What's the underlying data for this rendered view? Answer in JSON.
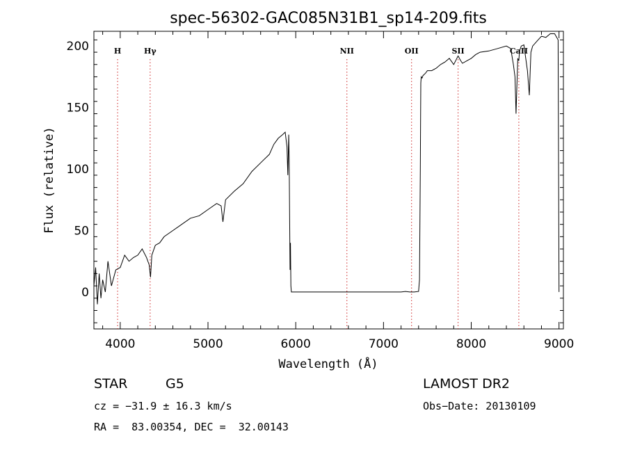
{
  "chart_data": {
    "type": "line",
    "title": "spec-56302-GAC085N31B1_sp14-209.fits",
    "xlabel": "Wavelength (Å)",
    "ylabel": "Flux (relative)",
    "xlim": [
      3700,
      9050
    ],
    "ylim": [
      -30,
      212
    ],
    "xticks": [
      4000,
      5000,
      6000,
      7000,
      8000,
      9000
    ],
    "yticks": [
      0,
      50,
      100,
      150,
      200
    ],
    "grid": false,
    "series": [
      {
        "x": [
          3700,
          3720,
          3740,
          3760,
          3780,
          3800,
          3830,
          3860,
          3900,
          3950,
          4000,
          4050,
          4100,
          4150,
          4200,
          4250,
          4300,
          4330,
          4345,
          4360,
          4400,
          4450,
          4500,
          4600,
          4700,
          4800,
          4900,
          5000,
          5100,
          5150,
          5170,
          5200,
          5300,
          5400,
          5500,
          5600,
          5700,
          5750,
          5800,
          5850,
          5880,
          5900,
          5910,
          5920,
          5925,
          5930,
          5935,
          5940,
          5945,
          5950,
          7200,
          7250,
          7300,
          7350,
          7400,
          7410,
          7420,
          7425,
          7430,
          7440,
          7450,
          7480,
          7500,
          7550,
          7600,
          7650,
          7700,
          7750,
          7800,
          7850,
          7880,
          7900,
          7950,
          8000,
          8050,
          8100,
          8200,
          8300,
          8400,
          8450,
          8480,
          8498,
          8510,
          8530,
          8542,
          8550,
          8570,
          8600,
          8640,
          8662,
          8680,
          8700,
          8750,
          8800,
          8850,
          8900,
          8950,
          8990,
          9000
        ],
        "y": [
          5,
          20,
          -10,
          15,
          -5,
          10,
          0,
          25,
          5,
          18,
          20,
          30,
          25,
          28,
          30,
          35,
          28,
          22,
          12,
          30,
          38,
          40,
          45,
          50,
          55,
          60,
          62,
          67,
          72,
          70,
          57,
          75,
          82,
          88,
          98,
          105,
          112,
          120,
          125,
          128,
          130,
          118,
          95,
          128,
          110,
          60,
          18,
          40,
          5,
          0,
          0,
          0.5,
          0,
          0,
          0.5,
          10,
          100,
          170,
          175,
          174,
          176,
          178,
          180,
          180,
          182,
          185,
          187,
          190,
          185,
          192,
          188,
          186,
          188,
          190,
          193,
          195,
          196,
          198,
          200,
          198,
          185,
          175,
          145,
          190,
          188,
          196,
          200,
          201,
          180,
          160,
          195,
          200,
          204,
          208,
          207,
          210,
          210,
          205,
          0
        ]
      }
    ],
    "lines": [
      {
        "label": "H",
        "x": 3970
      },
      {
        "label": "Hγ",
        "x": 4341
      },
      {
        "label": "NII",
        "x": 6583
      },
      {
        "label": "OII",
        "x": 7320
      },
      {
        "label": "SII",
        "x": 7850
      },
      {
        "label": "CaII",
        "x": 8542
      }
    ]
  },
  "info": {
    "class": "STAR",
    "subclass": "G5",
    "survey": "LAMOST DR2",
    "cz": "cz = −31.9 ± 16.3 km/s",
    "obs_date": "Obs−Date: 20130109",
    "radec": "RA =  83.00354, DEC =  32.00143"
  },
  "colors": {
    "spectrum": "#000000",
    "line_markers": "#cc2222",
    "axes": "#000000"
  }
}
